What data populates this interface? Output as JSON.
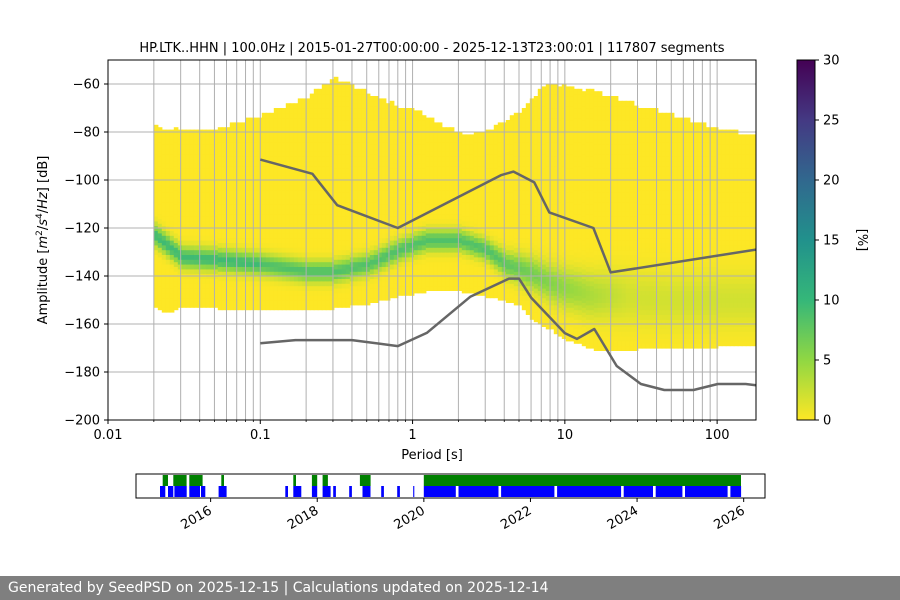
{
  "chart_data": [
    {
      "type": "heatmap",
      "title": "HP.LTK..HHN | 100.0Hz | 2015-01-27T00:00:00 - 2025-12-13T23:00:01 | 117807 segments",
      "xlabel": "Period [s]",
      "ylabel_parts": [
        "Amplitude [",
        "m",
        "2",
        "/",
        "s",
        "4",
        "/",
        "Hz",
        "] [dB]"
      ],
      "x_scale": "log",
      "xlim": [
        0.01,
        180
      ],
      "ylim": [
        -200,
        -50
      ],
      "x_ticks": [
        0.01,
        0.1,
        1,
        10,
        100
      ],
      "x_tick_labels": [
        "0.01",
        "0.1",
        "1",
        "10",
        "100"
      ],
      "y_ticks": [
        -60,
        -80,
        -100,
        -120,
        -140,
        -160,
        -180,
        -200
      ],
      "y_tick_labels": [
        "−60",
        "−80",
        "−100",
        "−120",
        "−140",
        "−160",
        "−180",
        "−200"
      ],
      "grid": true,
      "colorbar": {
        "label": "[%]",
        "range": [
          0,
          30
        ],
        "ticks": [
          0,
          5,
          10,
          15,
          20,
          25,
          30
        ],
        "tick_labels": [
          "0",
          "5",
          "10",
          "15",
          "20",
          "25",
          "30"
        ],
        "colormap": "viridis"
      },
      "mode_curve": {
        "name": "mode",
        "x": [
          0.02,
          0.025,
          0.03,
          0.05,
          0.1,
          0.2,
          0.3,
          0.5,
          0.8,
          1.2,
          2,
          3,
          4,
          5,
          6,
          8,
          10,
          15,
          20,
          30,
          50,
          100,
          180
        ],
        "y": [
          -123,
          -128,
          -132,
          -133,
          -135,
          -138,
          -138,
          -135,
          -129,
          -125,
          -125,
          -129,
          -135,
          -137,
          -139,
          -143,
          -145,
          -148,
          -148,
          -149,
          -150,
          -150,
          -150
        ],
        "envelope_low": [
          -153,
          -155,
          -152,
          -153,
          -154,
          -154,
          -153,
          -151,
          -148,
          -146,
          -146,
          -148,
          -150,
          -152,
          -158,
          -162,
          -166,
          -170,
          -171,
          -170,
          -170,
          -169,
          -168
        ],
        "envelope_high": [
          -78,
          -80,
          -79,
          -80,
          -74,
          -66,
          -58,
          -65,
          -70,
          -74,
          -82,
          -80,
          -76,
          -72,
          -66,
          -60,
          -62,
          -64,
          -66,
          -70,
          -74,
          -80,
          -82
        ]
      },
      "series": [
        {
          "name": "NHNM",
          "color": "#666666",
          "x": [
            0.1,
            0.22,
            0.32,
            0.8,
            3.8,
            4.6,
            6.3,
            7.9,
            15.4,
            20,
            180
          ],
          "y": [
            -91.5,
            -97.4,
            -110.5,
            -120,
            -98,
            -96.5,
            -101,
            -113.5,
            -120,
            -138.5,
            -129
          ]
        },
        {
          "name": "NLNM",
          "color": "#666666",
          "x": [
            0.1,
            0.17,
            0.4,
            0.8,
            1.24,
            2.4,
            4.3,
            5,
            6,
            10,
            12,
            15.6,
            21.9,
            31.6,
            45,
            70,
            101,
            154,
            180
          ],
          "y": [
            -168,
            -166.7,
            -166.7,
            -169.2,
            -163.7,
            -148.6,
            -141.1,
            -141.1,
            -149,
            -163.8,
            -166.2,
            -162.1,
            -177.5,
            -185,
            -187.5,
            -187.5,
            -185,
            -185,
            -185.5
          ]
        }
      ]
    },
    {
      "type": "timeline",
      "x_tick_labels": [
        "2016",
        "2018",
        "2020",
        "2022",
        "2024",
        "2026"
      ],
      "x_ticks": [
        2016,
        2018,
        2020,
        2022,
        2024,
        2026
      ],
      "xlim": [
        2014.6,
        2026.4
      ],
      "rows": [
        {
          "name": "upper",
          "color": "#008000",
          "intervals": [
            [
              2015.1,
              2015.2
            ],
            [
              2015.3,
              2015.55
            ],
            [
              2015.6,
              2015.85
            ],
            [
              2016.2,
              2016.25
            ],
            [
              2017.55,
              2017.6
            ],
            [
              2017.9,
              2018.0
            ],
            [
              2018.1,
              2018.2
            ],
            [
              2018.8,
              2019.0
            ],
            [
              2020.0,
              2025.95
            ]
          ]
        },
        {
          "name": "lower",
          "color": "#0000ff",
          "intervals": [
            [
              2015.05,
              2015.15
            ],
            [
              2015.2,
              2015.3
            ],
            [
              2015.32,
              2015.55
            ],
            [
              2015.6,
              2015.8
            ],
            [
              2015.82,
              2015.9
            ],
            [
              2016.15,
              2016.3
            ],
            [
              2017.4,
              2017.45
            ],
            [
              2017.55,
              2017.7
            ],
            [
              2017.9,
              2018.0
            ],
            [
              2018.1,
              2018.25
            ],
            [
              2018.3,
              2018.35
            ],
            [
              2018.6,
              2018.65
            ],
            [
              2018.85,
              2019.0
            ],
            [
              2019.2,
              2019.25
            ],
            [
              2019.5,
              2019.55
            ],
            [
              2019.8,
              2019.82
            ],
            [
              2020.0,
              2020.6
            ],
            [
              2020.65,
              2021.4
            ],
            [
              2021.45,
              2022.45
            ],
            [
              2022.5,
              2023.7
            ],
            [
              2023.75,
              2024.3
            ],
            [
              2024.35,
              2024.85
            ],
            [
              2024.9,
              2025.7
            ],
            [
              2025.75,
              2025.95
            ]
          ]
        }
      ]
    }
  ],
  "footer": {
    "text": "Generated by SeedPSD on 2025-12-15 | Calculations updated on 2025-12-14"
  }
}
